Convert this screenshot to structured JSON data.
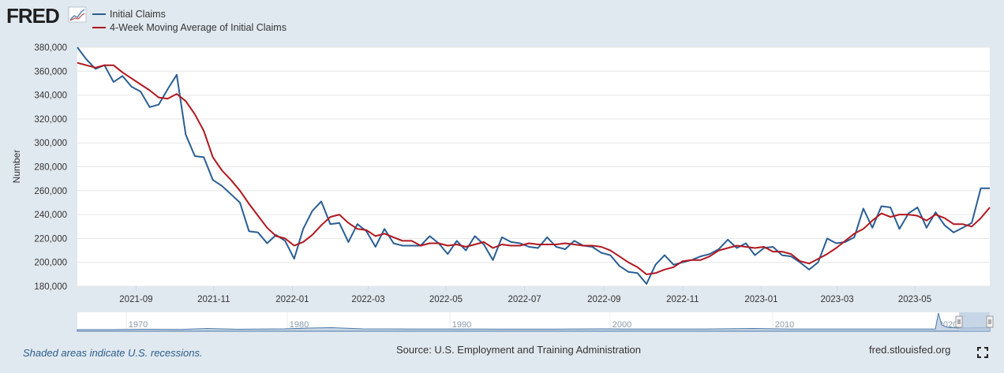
{
  "logo": {
    "text": "FRED"
  },
  "legend": [
    "Initial Claims",
    "4-Week Moving Average of Initial Claims"
  ],
  "colors": {
    "series1": "#2a5e93",
    "series2": "#b0171f",
    "navigator": "#4d79a8",
    "recession": "#d6e1ec"
  },
  "footer": {
    "recession_note": "Shaded areas indicate U.S. recessions.",
    "source": "Source: U.S. Employment and Training Administration",
    "site": "fred.stlouisfed.org"
  },
  "icons": {
    "fullscreen": "fullscreen-icon",
    "logo_chart": "chart-line-icon"
  },
  "navigator": {
    "ticks": [
      "1970",
      "1980",
      "1990",
      "2000",
      "2010",
      "2020"
    ]
  },
  "chart_data": {
    "type": "line",
    "title": "",
    "xlabel": "",
    "ylabel": "Number",
    "ylim": [
      180000,
      380000
    ],
    "yticks": [
      180000,
      200000,
      220000,
      240000,
      260000,
      280000,
      300000,
      320000,
      340000,
      360000,
      380000
    ],
    "ytick_labels": [
      "180,000",
      "200,000",
      "220,000",
      "240,000",
      "260,000",
      "280,000",
      "300,000",
      "320,000",
      "340,000",
      "360,000",
      "380,000"
    ],
    "x_start": "2021-07-17",
    "x_interval_weeks": 1,
    "xtick_labels": [
      "2021-09",
      "2021-11",
      "2022-01",
      "2022-03",
      "2022-05",
      "2022-07",
      "2022-09",
      "2022-11",
      "2023-01",
      "2023-03",
      "2023-05"
    ],
    "xtick_weeks": [
      6.5,
      15.1,
      23.8,
      32.2,
      40.8,
      49.5,
      58.3,
      67.0,
      75.7,
      84.1,
      92.7
    ],
    "series": [
      {
        "name": "Initial Claims",
        "values": [
          380000,
          370000,
          362000,
          365000,
          351000,
          356000,
          347000,
          343000,
          330000,
          332000,
          345000,
          357000,
          307000,
          289000,
          288000,
          269000,
          264000,
          257000,
          250000,
          226000,
          225000,
          216000,
          223000,
          218000,
          203000,
          228000,
          243000,
          251000,
          232000,
          233000,
          217000,
          232000,
          226000,
          213000,
          228000,
          216000,
          214000,
          214000,
          214000,
          222000,
          216000,
          207000,
          218000,
          210000,
          222000,
          215000,
          202000,
          221000,
          217000,
          216000,
          213000,
          212000,
          221000,
          213000,
          211000,
          218000,
          214000,
          213000,
          208000,
          206000,
          197000,
          192000,
          191000,
          182000,
          198000,
          206000,
          198000,
          200000,
          202000,
          205000,
          207000,
          211000,
          219000,
          212000,
          216000,
          206000,
          212000,
          213000,
          206000,
          205000,
          200000,
          194000,
          200000,
          220000,
          216000,
          217000,
          221000,
          245000,
          229000,
          247000,
          246000,
          228000,
          241000,
          246000,
          229000,
          242000,
          231000,
          225000,
          229000,
          233000,
          262000,
          262000
        ]
      },
      {
        "name": "4-Week Moving Average of Initial Claims",
        "values": [
          367000,
          365000,
          363000,
          365000,
          365000,
          359000,
          354000,
          349000,
          344000,
          338000,
          337000,
          341000,
          335000,
          324000,
          310000,
          288000,
          277000,
          269000,
          260000,
          249000,
          239000,
          229000,
          222000,
          220000,
          214000,
          217000,
          223000,
          231000,
          238000,
          240000,
          233000,
          228000,
          227000,
          222000,
          224000,
          221000,
          218000,
          218000,
          214000,
          216000,
          216000,
          214000,
          215000,
          213000,
          215000,
          217000,
          212000,
          215000,
          214000,
          214000,
          216000,
          215000,
          215000,
          215000,
          216000,
          215000,
          214000,
          214000,
          213000,
          210000,
          205000,
          200000,
          196000,
          190000,
          191000,
          194000,
          196000,
          201000,
          202000,
          202000,
          205000,
          210000,
          212000,
          214000,
          213000,
          212000,
          213000,
          209000,
          209000,
          207000,
          201000,
          199000,
          203000,
          207000,
          212000,
          218000,
          224000,
          228000,
          235000,
          241000,
          238000,
          240000,
          240000,
          239000,
          235000,
          240000,
          237000,
          232000,
          232000,
          230000,
          237000,
          246000
        ]
      }
    ]
  }
}
